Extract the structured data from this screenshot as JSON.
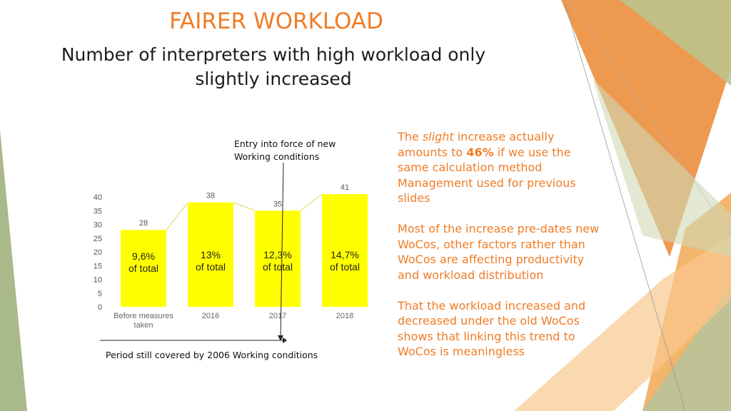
{
  "title": "FAIRER WORKLOAD",
  "subtitle": "Number of interpreters with high workload only slightly increased",
  "annotation_top": "Entry into force of new Working conditions",
  "annotation_bottom": "Period still covered by 2006 Working conditions",
  "colors": {
    "accent": "#f07c26",
    "bar": "#ffff00",
    "line": "#e8e48a",
    "green": "#a9b98a"
  },
  "side_text": {
    "p1_a": "The ",
    "p1_em": "slight",
    "p1_b": " increase actually amounts to ",
    "p1_strong": "46%",
    "p1_c": " if we use the same calculation method Management used for previous slides",
    "p2": "Most of the increase pre-dates new WoCos, other factors rather than WoCos are affecting productivity and workload distribution",
    "p3": "That the workload increased and decreased under the old WoCos shows that linking this trend to WoCos is meaningless"
  },
  "chart_data": {
    "type": "bar",
    "categories": [
      "Before measures taken",
      "2016",
      "2017",
      "2018"
    ],
    "category_lines": [
      [
        "Before measures",
        "taken"
      ],
      [
        "2016"
      ],
      [
        "2017"
      ],
      [
        "2018"
      ]
    ],
    "values": [
      28,
      38,
      35,
      41
    ],
    "in_bar_labels": [
      [
        "9,6%",
        "of total"
      ],
      [
        "13%",
        "of total"
      ],
      [
        "12,3%",
        "of total"
      ],
      [
        "14,7%",
        "of total"
      ]
    ],
    "yticks": [
      0,
      5,
      10,
      15,
      20,
      25,
      30,
      35,
      40
    ],
    "ylim": [
      0,
      45
    ],
    "connector_line": true,
    "grid": false,
    "xlabel": "",
    "ylabel": ""
  }
}
